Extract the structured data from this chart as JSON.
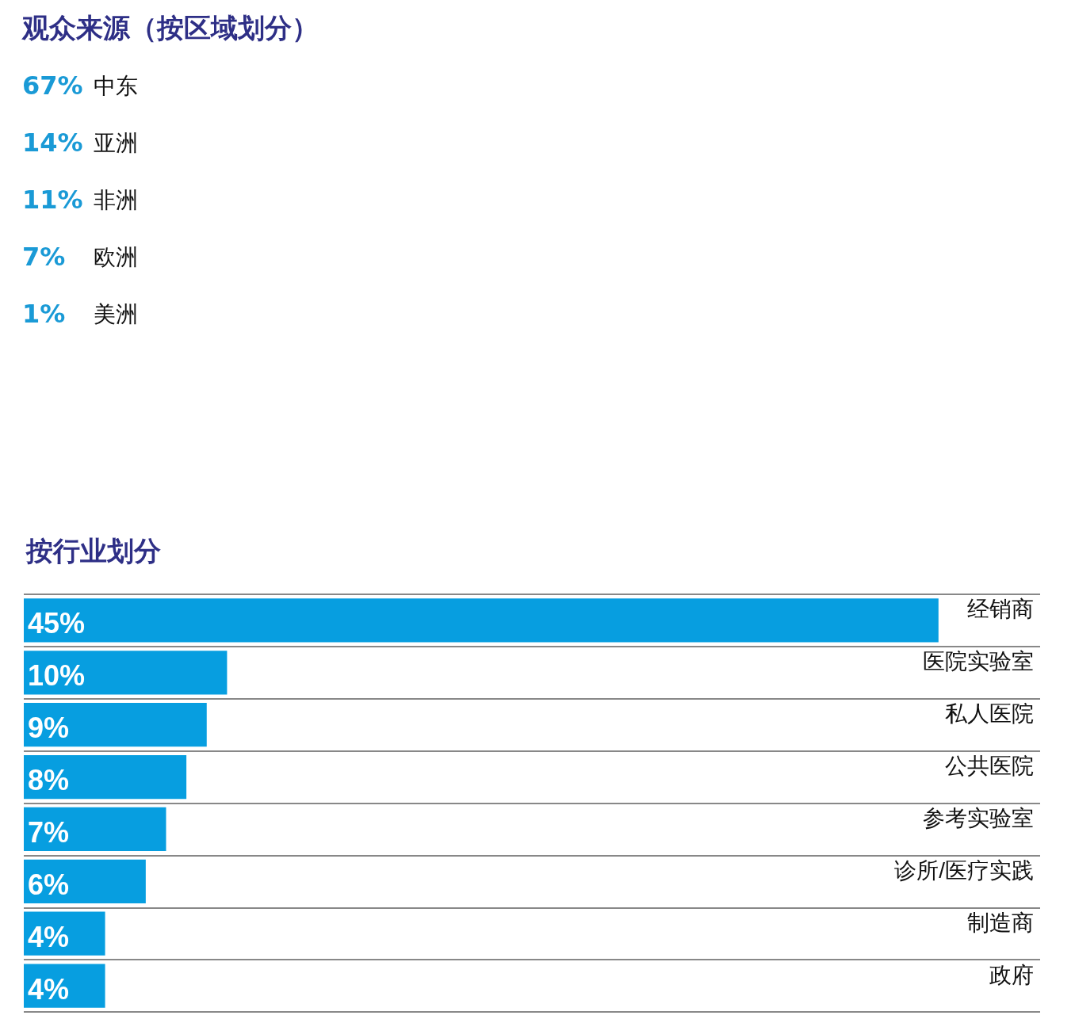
{
  "chart_data": [
    {
      "type": "other",
      "title": "观众来源（按区域划分）",
      "categories": [
        "中东",
        "亚洲",
        "非洲",
        "欧洲",
        "美洲"
      ],
      "value_labels": [
        "67%",
        "14%",
        "11%",
        "7%",
        "1%"
      ]
    },
    {
      "type": "bar",
      "orientation": "horizontal",
      "title": "按行业划分",
      "categories": [
        "经销商",
        "医院实验室",
        "私人医院",
        "公共医院",
        "参考实验室",
        "诊所/医疗实践",
        "制造商",
        "政府"
      ],
      "values": [
        45,
        10,
        9,
        8,
        7,
        6,
        4,
        4
      ],
      "value_labels": [
        "45%",
        "10%",
        "9%",
        "8%",
        "7%",
        "6%",
        "4%",
        "4%"
      ],
      "color": "#079ee0",
      "grid": "y"
    }
  ]
}
